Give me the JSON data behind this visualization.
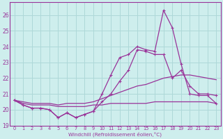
{
  "bg_color": "#ceeeed",
  "grid_color": "#aed8d8",
  "line_color": "#993399",
  "xlabel": "Windchill (Refroidissement éolien,°C)",
  "xlim": [
    -0.5,
    23.5
  ],
  "ylim": [
    19,
    26.8
  ],
  "yticks": [
    19,
    20,
    21,
    22,
    23,
    24,
    25,
    26
  ],
  "xticks": [
    0,
    1,
    2,
    3,
    4,
    5,
    6,
    7,
    8,
    9,
    10,
    11,
    12,
    13,
    14,
    15,
    16,
    17,
    18,
    19,
    20,
    21,
    22,
    23
  ],
  "line1_y": [
    20.6,
    20.3,
    20.1,
    20.1,
    20.0,
    19.5,
    19.8,
    19.5,
    19.7,
    19.9,
    21.0,
    22.2,
    23.3,
    23.5,
    24.0,
    23.8,
    23.7,
    26.3,
    25.2,
    22.9,
    21.0,
    20.9,
    20.9,
    20.4
  ],
  "line2_y": [
    20.6,
    20.3,
    20.1,
    20.1,
    20.0,
    19.5,
    19.8,
    19.5,
    19.7,
    19.9,
    20.5,
    21.0,
    21.8,
    22.5,
    23.8,
    23.7,
    23.5,
    23.5,
    22.0,
    22.5,
    21.5,
    21.0,
    21.0,
    20.9
  ],
  "line3_y": [
    20.6,
    20.5,
    20.4,
    20.4,
    20.4,
    20.3,
    20.4,
    20.4,
    20.4,
    20.5,
    20.7,
    20.9,
    21.1,
    21.3,
    21.5,
    21.6,
    21.8,
    22.0,
    22.1,
    22.2,
    22.2,
    22.1,
    22.0,
    21.9
  ],
  "line4_y": [
    20.6,
    20.4,
    20.3,
    20.3,
    20.3,
    20.2,
    20.2,
    20.2,
    20.2,
    20.3,
    20.3,
    20.4,
    20.4,
    20.4,
    20.4,
    20.4,
    20.5,
    20.5,
    20.5,
    20.5,
    20.5,
    20.5,
    20.5,
    20.4
  ]
}
